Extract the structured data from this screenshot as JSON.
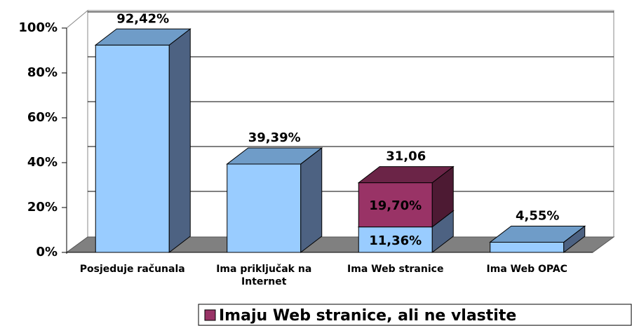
{
  "chart_data": {
    "type": "bar3d_stacked",
    "categories": [
      "Posjeduje računala",
      "Ima priključak na Internet",
      "Ima Web stranice",
      "Ima Web OPAC"
    ],
    "series": [
      {
        "color": "#99ccff",
        "top_color": "#6f9cc8",
        "side_color": "#4d6282",
        "values": [
          92.42,
          39.39,
          11.36,
          4.55
        ],
        "value_labels": [
          "92,42%",
          "39,39%",
          "11,36%",
          "4,55%"
        ]
      },
      {
        "name": "Imaju Web stranice, ali ne vlastite",
        "color": "#993366",
        "top_color": "#6b2447",
        "side_color": "#4d1a33",
        "values": [
          null,
          null,
          19.7,
          null
        ],
        "value_labels": [
          null,
          null,
          "19,70%",
          null
        ]
      }
    ],
    "stack_total_labels": [
      null,
      null,
      "31,06",
      null
    ],
    "ylim": [
      0,
      100
    ],
    "yticks": [
      {
        "value": 0,
        "label": "0%"
      },
      {
        "value": 20,
        "label": "20%"
      },
      {
        "value": 40,
        "label": "40%"
      },
      {
        "value": 60,
        "label": "60%"
      },
      {
        "value": 80,
        "label": "80%"
      },
      {
        "value": 100,
        "label": "100%"
      }
    ],
    "grid": true
  }
}
